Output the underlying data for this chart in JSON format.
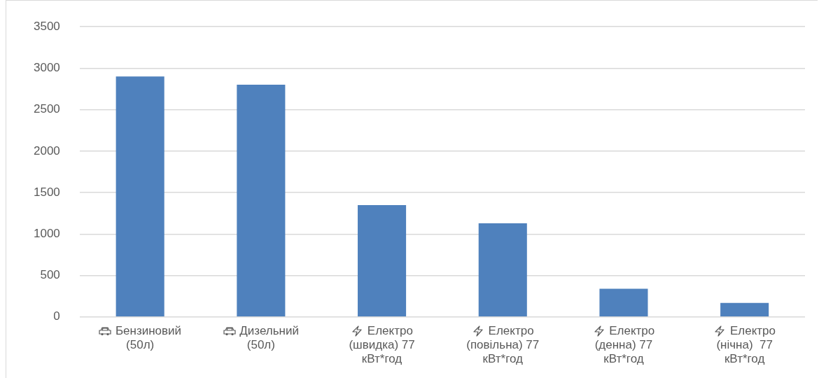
{
  "chart_data": {
    "type": "bar",
    "categories": [
      "Бензиновий (50л)",
      "Дизельний (50л)",
      "Електро (швидка) 77 кВт*год",
      "Електро (повільна) 77 кВт*год",
      "Електро (денна) 77 кВт*год",
      "Електро (нічна)  77 кВт*год"
    ],
    "values": [
      2900,
      2800,
      1350,
      1130,
      340,
      170
    ],
    "color": "#4f81bd",
    "ylim": [
      0,
      3500
    ],
    "yticks": [
      0,
      500,
      1000,
      1500,
      2000,
      2500,
      3000,
      3500
    ],
    "grid": "y",
    "legend": false
  }
}
